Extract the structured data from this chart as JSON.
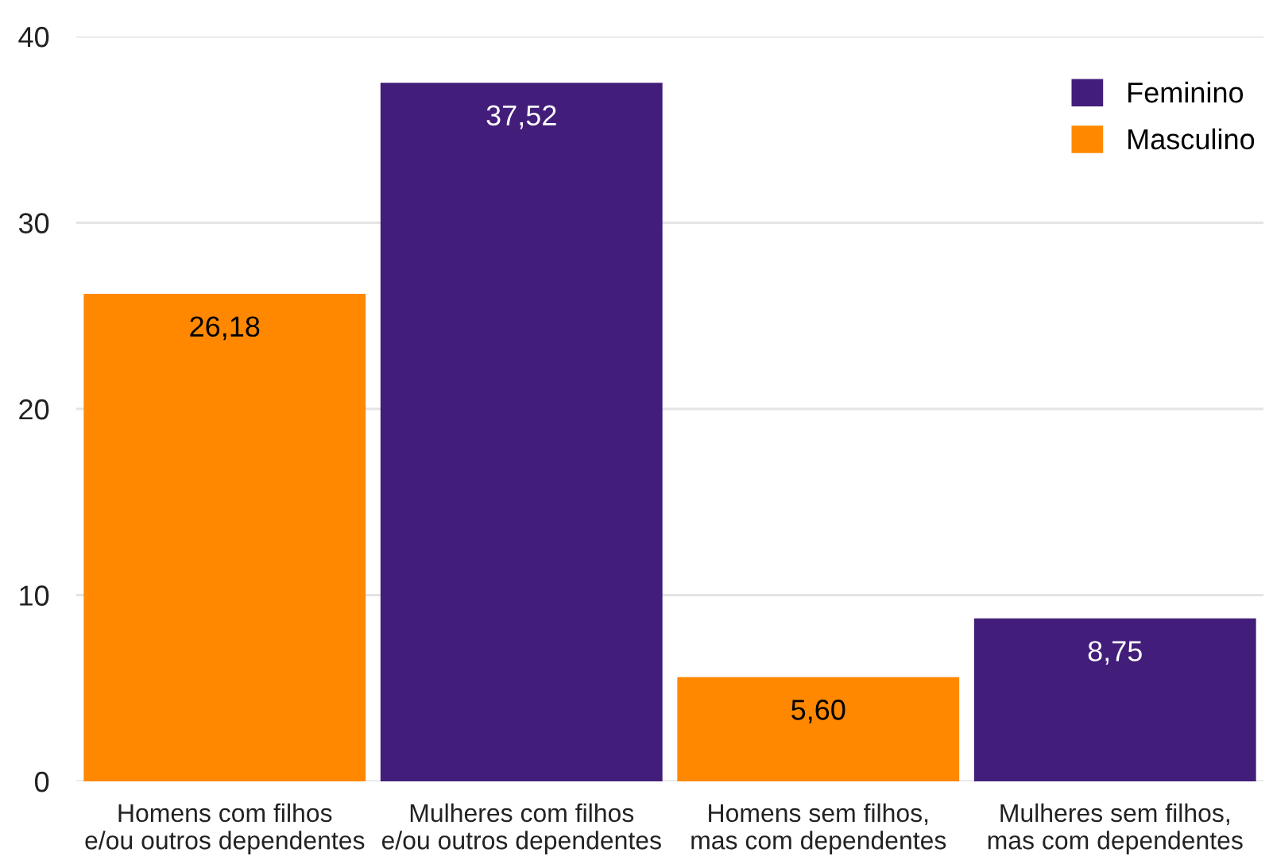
{
  "chart_data": {
    "type": "bar",
    "categories": [
      "Homens com filhos\ne/ou outros dependentes",
      "Mulheres com filhos\ne/ou outros dependentes",
      "Homens sem filhos,\nmas com dependentes",
      "Mulheres sem filhos,\nmas com dependentes"
    ],
    "series": [
      {
        "name": "Feminino",
        "color": "#421e7a",
        "values": [
          null,
          37.52,
          null,
          8.75
        ],
        "value_labels": [
          null,
          "37,52",
          null,
          "8,75"
        ]
      },
      {
        "name": "Masculino",
        "color": "#ff8800",
        "values": [
          26.18,
          null,
          5.6,
          null
        ],
        "value_labels": [
          "26,18",
          null,
          "5,60",
          null
        ]
      }
    ],
    "ylim": [
      0,
      40
    ],
    "yticks": [
      0,
      10,
      20,
      30,
      40
    ],
    "grid": "y",
    "legend": "top right"
  }
}
